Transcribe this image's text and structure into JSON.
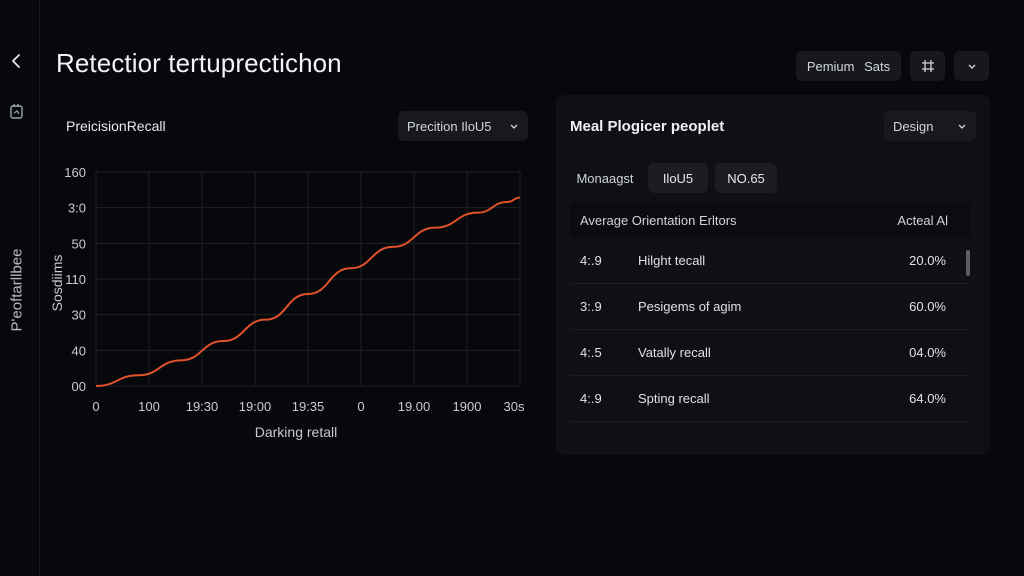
{
  "header": {
    "title": "Retectior tertuprectichon",
    "premium_label": "Pemium",
    "sats_label": "Sats"
  },
  "rail": {
    "vertical_label": "P'eoftarllbee"
  },
  "chart_panel": {
    "title": "PreicisionRecall",
    "select_value": "Precition IloU5"
  },
  "chart_data": {
    "type": "line",
    "x_ticks": [
      "0",
      "100",
      "19:30",
      "19:00",
      "19:35",
      "0",
      "19.00",
      "1900",
      "30s"
    ],
    "y_ticks": [
      "160",
      "3:0",
      "50",
      "110",
      "30",
      "40",
      "00"
    ],
    "xlabel": "Darking retall",
    "ylabel": "Sosdiims",
    "series": [
      {
        "values_y_fraction": [
          0.0,
          0.05,
          0.12,
          0.21,
          0.31,
          0.43,
          0.55,
          0.65,
          0.74,
          0.81,
          0.86,
          0.88
        ]
      }
    ],
    "x_fraction": [
      0.0,
      0.1,
      0.2,
      0.3,
      0.4,
      0.5,
      0.6,
      0.7,
      0.8,
      0.9,
      0.97,
      1.0
    ],
    "line_color": "#e0512c",
    "grid": true
  },
  "right_panel": {
    "title": "Meal Plogicer peoplet",
    "design_label": "Design",
    "chips": [
      "Monaagst",
      "IloU5",
      "NO.65"
    ],
    "table": {
      "headers": [
        "Average Orientation Erltors",
        "Acteal Al"
      ],
      "rows": [
        {
          "c1": "4:.9",
          "c2": "Hilght tecall",
          "c3": "20.0%"
        },
        {
          "c1": "3:.9",
          "c2": "Pesigems of agim",
          "c3": "60.0%"
        },
        {
          "c1": "4:.5",
          "c2": "Vatally recall",
          "c3": "04.0%"
        },
        {
          "c1": "4:.9",
          "c2": "Spting recall",
          "c3": "64.0%"
        }
      ]
    }
  }
}
